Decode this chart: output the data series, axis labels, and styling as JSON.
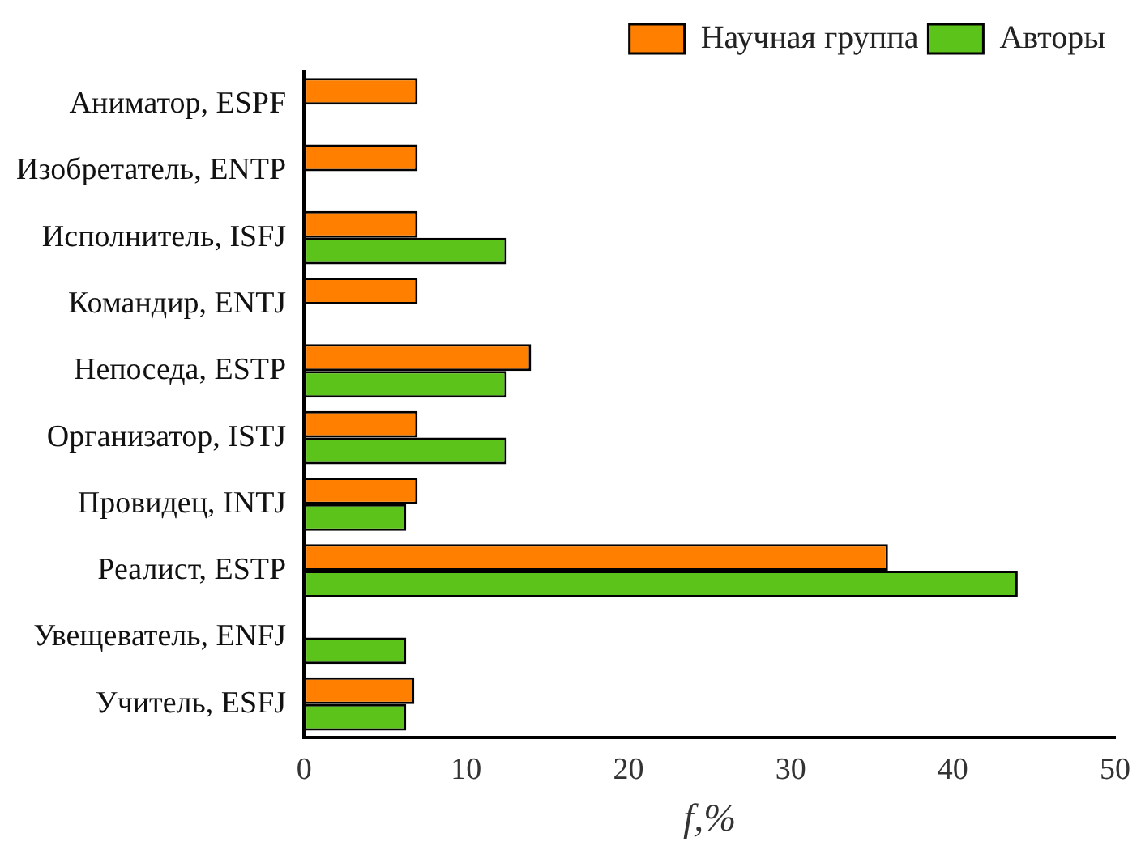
{
  "chart_data": {
    "type": "bar",
    "orientation": "horizontal",
    "xlabel": "f,%",
    "categories": [
      "Аниматор, ESPF",
      "Изобретатель, ENTP",
      "Исполнитель, ISFJ",
      "Командир, ENTJ",
      "Непоседа, ESTP",
      "Организатор, ISTJ",
      "Провидец, INTJ",
      "Реалист, ESTP",
      "Увещеватель, ENFJ",
      "Учитель, ESFJ"
    ],
    "series": [
      {
        "name": "Научная группа",
        "color": "#ff8000",
        "values": [
          7,
          7,
          7,
          7,
          14,
          7,
          7,
          36,
          null,
          6.8
        ]
      },
      {
        "name": "Авторы",
        "color": "#5cc31a",
        "values": [
          null,
          null,
          12.5,
          null,
          12.5,
          12.5,
          6.3,
          44,
          6.3,
          6.3
        ]
      }
    ],
    "xlim": [
      0,
      50
    ],
    "xticks": [
      0,
      10,
      20,
      30,
      40,
      50
    ],
    "grid": false,
    "legend": "top right"
  }
}
